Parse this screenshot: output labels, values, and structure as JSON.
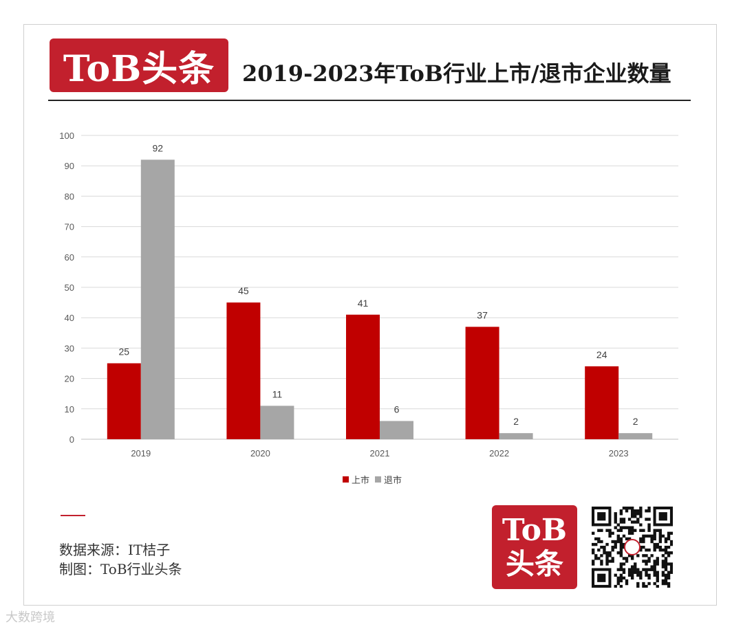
{
  "header": {
    "logo_text": "ToB头条",
    "title": "2019-2023年ToB行业上市/退市企业数量"
  },
  "chart_data": {
    "type": "bar",
    "categories": [
      "2019",
      "2020",
      "2021",
      "2022",
      "2023"
    ],
    "series": [
      {
        "name": "上市",
        "values": [
          25,
          45,
          41,
          37,
          24
        ],
        "color": "#c00000"
      },
      {
        "name": "退市",
        "values": [
          92,
          11,
          6,
          2,
          2
        ],
        "color": "#a6a6a6"
      }
    ],
    "ylim": [
      0,
      100
    ],
    "yticks": [
      0,
      10,
      20,
      30,
      40,
      50,
      60,
      70,
      80,
      90,
      100
    ],
    "grid": true,
    "legend_position": "bottom",
    "data_labels": true
  },
  "legend": {
    "item1": "上市",
    "item2": "退市"
  },
  "footer": {
    "source_line": "数据来源：IT桔子",
    "made_by_line": "制图：ToB行业头条",
    "logo_line1": "ToB",
    "logo_line2": "头条"
  },
  "watermark": {
    "text": "大数跨境"
  }
}
